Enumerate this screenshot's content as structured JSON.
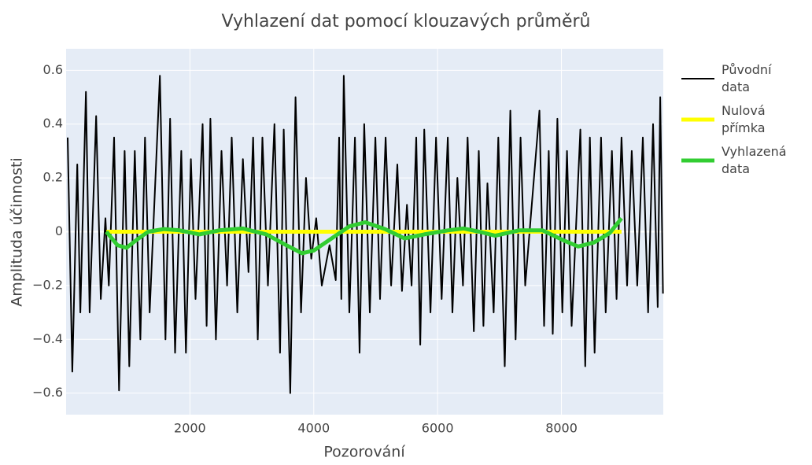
{
  "chart_data": {
    "type": "line",
    "title": "Vyhlazení dat pomocí klouzavých průměrů",
    "x_label": "Pozorování",
    "y_label": "Amplituda účinnosti",
    "xlim": [
      0,
      9645
    ],
    "xticks": [
      2000,
      4000,
      6000,
      8000
    ],
    "ylim": [
      -0.68,
      0.68
    ],
    "yticks": [
      -0.6,
      -0.4,
      -0.2,
      0,
      0.2,
      0.4,
      0.6
    ],
    "yticks_labels": [
      "−0.6",
      "−0.4",
      "−0.2",
      "0",
      "0.2",
      "0.4",
      "0.6"
    ],
    "grid": true,
    "legend": "right",
    "series": [
      {
        "name": "Původní data",
        "color": "#000000",
        "width": 2,
        "x": [
          25,
          100,
          180,
          230,
          320,
          380,
          485,
          560,
          635,
          690,
          775,
          855,
          945,
          1020,
          1110,
          1200,
          1275,
          1350,
          1515,
          1605,
          1680,
          1760,
          1860,
          1935,
          2015,
          2090,
          2205,
          2270,
          2330,
          2420,
          2510,
          2600,
          2675,
          2765,
          2855,
          2945,
          3020,
          3095,
          3170,
          3260,
          3365,
          3455,
          3515,
          3620,
          3705,
          3795,
          3875,
          3960,
          4040,
          4130,
          4255,
          4355,
          4410,
          4445,
          4485,
          4575,
          4665,
          4740,
          4815,
          4905,
          4995,
          5070,
          5160,
          5250,
          5350,
          5425,
          5505,
          5580,
          5655,
          5720,
          5785,
          5885,
          5975,
          6065,
          6165,
          6240,
          6320,
          6410,
          6485,
          6585,
          6665,
          6740,
          6805,
          6905,
          6980,
          7085,
          7175,
          7260,
          7340,
          7415,
          7645,
          7720,
          7795,
          7860,
          7935,
          8015,
          8090,
          8165,
          8305,
          8385,
          8460,
          8535,
          8640,
          8715,
          8815,
          8890,
          8970,
          9060,
          9135,
          9225,
          9315,
          9400,
          9480,
          9555,
          9595,
          9640
        ],
        "values": [
          0.35,
          -0.52,
          0.25,
          -0.3,
          0.52,
          -0.3,
          0.43,
          -0.25,
          0.05,
          -0.2,
          0.35,
          -0.59,
          0.3,
          -0.5,
          0.3,
          -0.4,
          0.35,
          -0.3,
          0.58,
          -0.4,
          0.42,
          -0.45,
          0.3,
          -0.45,
          0.27,
          -0.25,
          0.4,
          -0.35,
          0.42,
          -0.4,
          0.3,
          -0.2,
          0.35,
          -0.3,
          0.27,
          -0.15,
          0.35,
          -0.4,
          0.35,
          -0.2,
          0.4,
          -0.45,
          0.38,
          -0.6,
          0.5,
          -0.3,
          0.2,
          -0.1,
          0.05,
          -0.2,
          -0.05,
          -0.18,
          0.35,
          -0.25,
          0.58,
          -0.3,
          0.35,
          -0.45,
          0.4,
          -0.3,
          0.35,
          -0.25,
          0.35,
          -0.2,
          0.25,
          -0.22,
          0.1,
          -0.2,
          0.35,
          -0.42,
          0.38,
          -0.3,
          0.35,
          -0.25,
          0.35,
          -0.3,
          0.2,
          -0.2,
          0.35,
          -0.37,
          0.3,
          -0.35,
          0.18,
          -0.3,
          0.35,
          -0.5,
          0.45,
          -0.4,
          0.35,
          -0.2,
          0.45,
          -0.35,
          0.3,
          -0.38,
          0.42,
          -0.3,
          0.3,
          -0.35,
          0.38,
          -0.5,
          0.35,
          -0.45,
          0.35,
          -0.3,
          0.3,
          -0.25,
          0.35,
          -0.2,
          0.3,
          -0.2,
          0.35,
          -0.3,
          0.4,
          -0.28,
          0.5,
          -0.23
        ]
      },
      {
        "name": "Nulová přímka",
        "color": "#ffff00",
        "width": 5,
        "x": [
          650,
          8970
        ],
        "values": [
          0,
          0
        ]
      },
      {
        "name": "Vyhlazená data",
        "color": "#32cd32",
        "width": 5,
        "x": [
          650,
          830,
          975,
          1140,
          1325,
          1580,
          1835,
          2155,
          2470,
          2855,
          3235,
          3555,
          3810,
          4000,
          4255,
          4575,
          4830,
          5150,
          5465,
          5785,
          6165,
          6420,
          6675,
          6930,
          7315,
          7695,
          8015,
          8270,
          8525,
          8780,
          8970
        ],
        "values": [
          0,
          -0.05,
          -0.06,
          -0.03,
          0,
          0.01,
          0.005,
          -0.01,
          0.005,
          0.012,
          -0.01,
          -0.05,
          -0.08,
          -0.07,
          -0.03,
          0.02,
          0.035,
          0.01,
          -0.025,
          -0.01,
          0.005,
          0.012,
          0,
          -0.015,
          0.005,
          0.005,
          -0.03,
          -0.055,
          -0.04,
          -0.005,
          0.05
        ]
      }
    ]
  }
}
